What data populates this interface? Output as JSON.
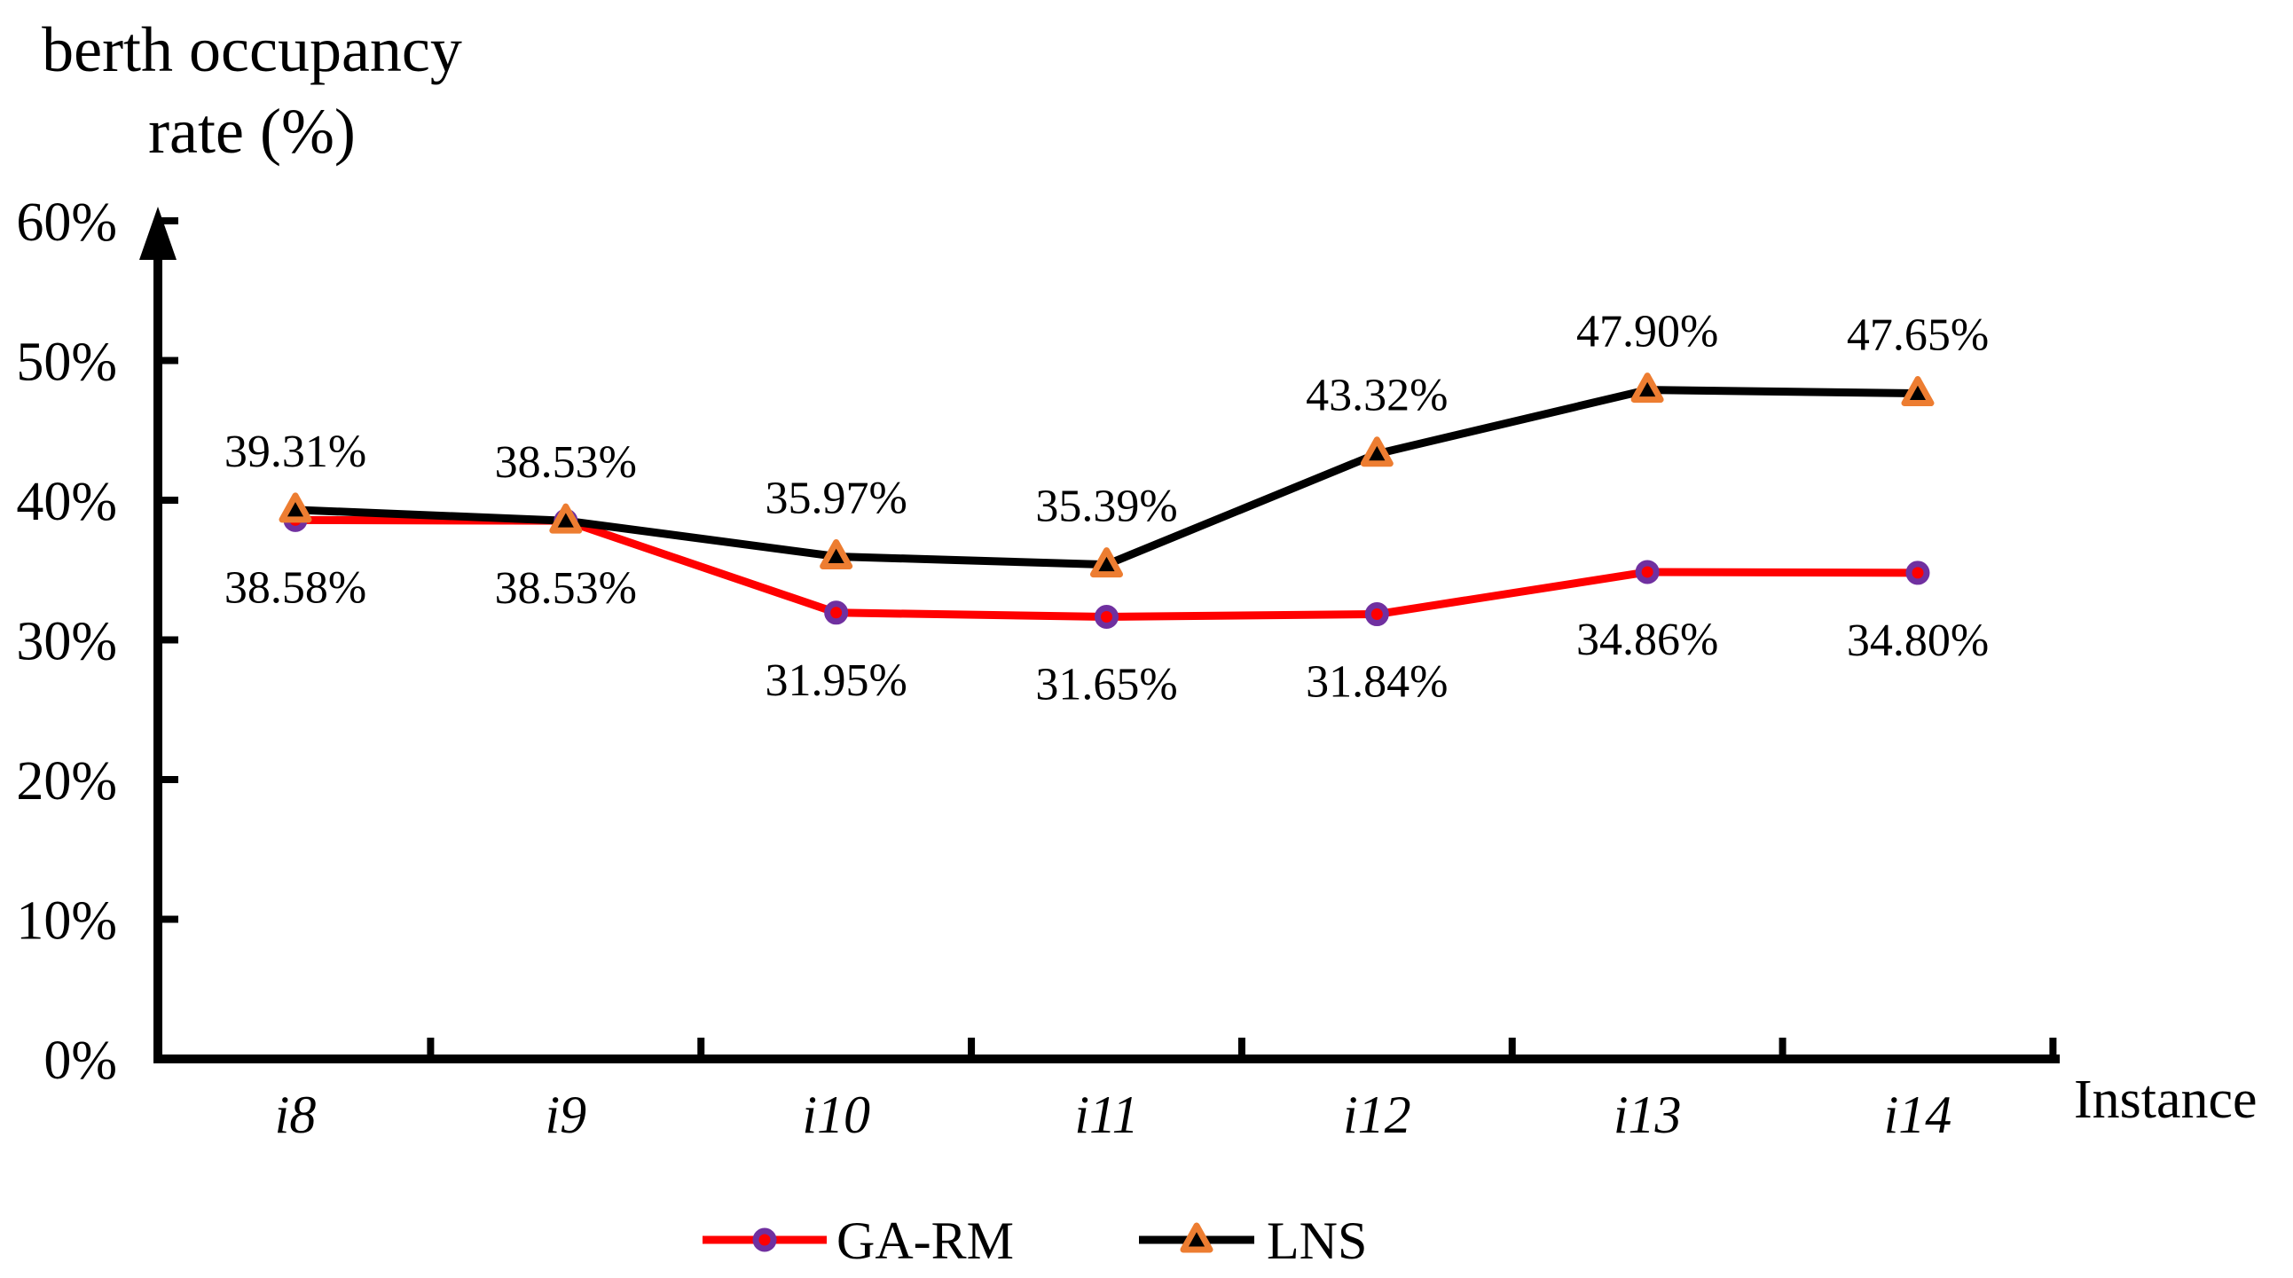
{
  "chart_data": {
    "type": "line",
    "title": "berth occupancy rate (%)",
    "title_lines": [
      "berth occupancy",
      "rate (%)"
    ],
    "xlabel": "Instance",
    "ylabel": "berth occupancy rate (%)",
    "categories": [
      "i8",
      "i9",
      "i10",
      "i11",
      "i12",
      "i13",
      "i14"
    ],
    "y_tick_labels": [
      "0%",
      "10%",
      "20%",
      "30%",
      "40%",
      "50%",
      "60%"
    ],
    "ylim": [
      0,
      60
    ],
    "grid": false,
    "legend_position": "bottom-center",
    "series": [
      {
        "name": "GA-RM",
        "line_color": "#ff0000",
        "marker": "circle",
        "marker_ring_color": "#7030a0",
        "marker_fill_color": "#ff0000",
        "label_position": "below",
        "values": [
          38.58,
          38.53,
          31.95,
          31.65,
          31.84,
          34.86,
          34.8
        ],
        "labels": [
          "38.58%",
          "38.53%",
          "31.95%",
          "31.65%",
          "31.84%",
          "34.86%",
          "34.80%"
        ]
      },
      {
        "name": "LNS",
        "line_color": "#000000",
        "marker": "triangle",
        "marker_ring_color": "#ed7d31",
        "marker_fill_color": "#000000",
        "label_position": "above",
        "values": [
          39.31,
          38.53,
          35.97,
          35.39,
          43.32,
          47.9,
          47.65
        ],
        "labels": [
          "39.31%",
          "38.53%",
          "35.97%",
          "35.39%",
          "43.32%",
          "47.90%",
          "47.65%"
        ]
      }
    ],
    "colors": {
      "axis": "#000000",
      "ga_rm_line": "#ff0000",
      "ga_rm_marker_ring": "#7030a0",
      "lns_line": "#000000",
      "lns_marker_ring": "#ed7d31",
      "background": "#ffffff"
    }
  }
}
